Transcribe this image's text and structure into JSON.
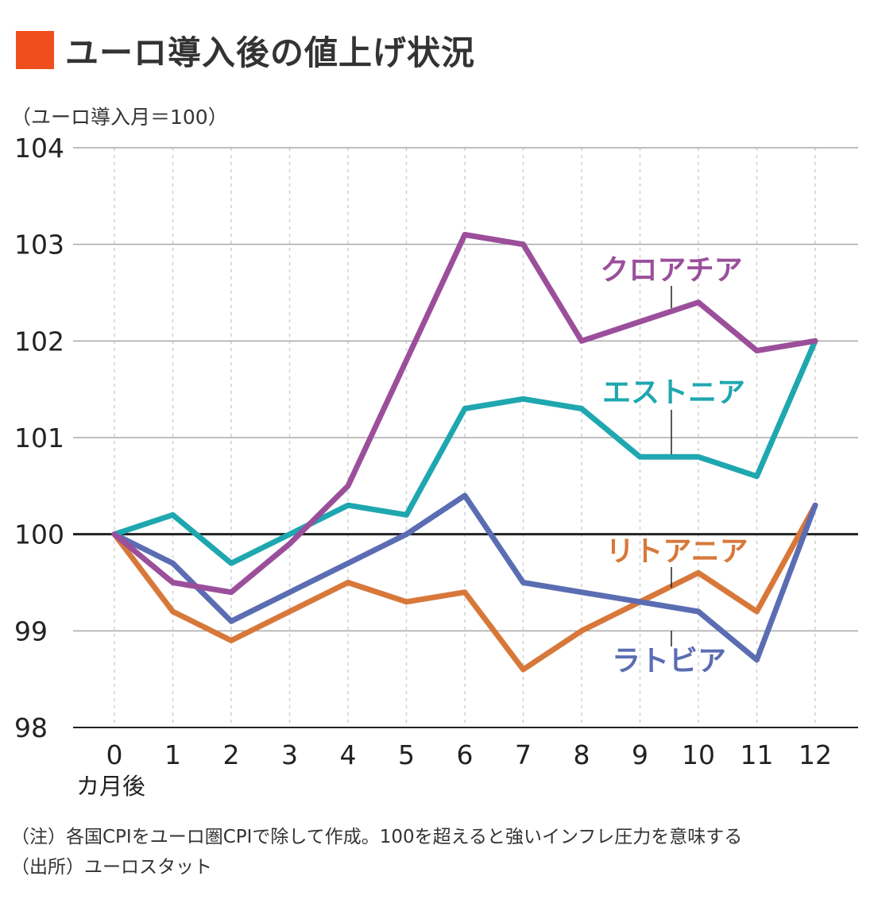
{
  "title": "ユーロ導入後の値上げ状況",
  "unit_note": "（ユーロ導入月＝100）",
  "notes": {
    "note1": "（注）各国CPIをユーロ圏CPIで除して作成。100を超えると強いインフレ圧力を意味する",
    "source": "（出所）ユーロスタット"
  },
  "colors": {
    "title_square": "#f04e1c",
    "クロアチア": "#9b4f9b",
    "エストニア": "#1fa7b0",
    "ラトビア": "#5b6db2",
    "リトアニア": "#d7783a"
  },
  "chart_data": {
    "type": "line",
    "x": [
      0,
      1,
      2,
      3,
      4,
      5,
      6,
      7,
      8,
      9,
      10,
      11,
      12
    ],
    "x_tick_labels": [
      "0",
      "1",
      "2",
      "3",
      "4",
      "5",
      "6",
      "7",
      "8",
      "9",
      "10",
      "11",
      "12"
    ],
    "xlabel": "カ月後",
    "ylabel": "",
    "ylim": [
      98,
      104
    ],
    "y_ticks": [
      98,
      99,
      100,
      101,
      102,
      103,
      104
    ],
    "grid": true,
    "reference_line": 100,
    "series": [
      {
        "name": "クロアチア",
        "color": "#9b4f9b",
        "values": [
          100,
          99.5,
          99.4,
          99.9,
          100.5,
          101.8,
          103.1,
          103.0,
          102.0,
          102.2,
          102.4,
          101.9,
          102.0
        ]
      },
      {
        "name": "エストニア",
        "color": "#1fa7b0",
        "values": [
          100,
          100.2,
          99.7,
          100.0,
          100.3,
          100.2,
          101.3,
          101.4,
          101.3,
          100.8,
          100.8,
          100.6,
          102.0
        ]
      },
      {
        "name": "ラトビア",
        "color": "#5b6db2",
        "values": [
          100,
          99.7,
          99.1,
          99.4,
          99.7,
          100.0,
          100.4,
          99.5,
          99.4,
          99.3,
          99.2,
          98.7,
          100.3
        ]
      },
      {
        "name": "リトアニア",
        "color": "#d7783a",
        "values": [
          100,
          99.2,
          98.9,
          99.2,
          99.5,
          99.3,
          99.4,
          98.6,
          99.0,
          99.3,
          99.6,
          99.2,
          100.3
        ]
      }
    ]
  }
}
